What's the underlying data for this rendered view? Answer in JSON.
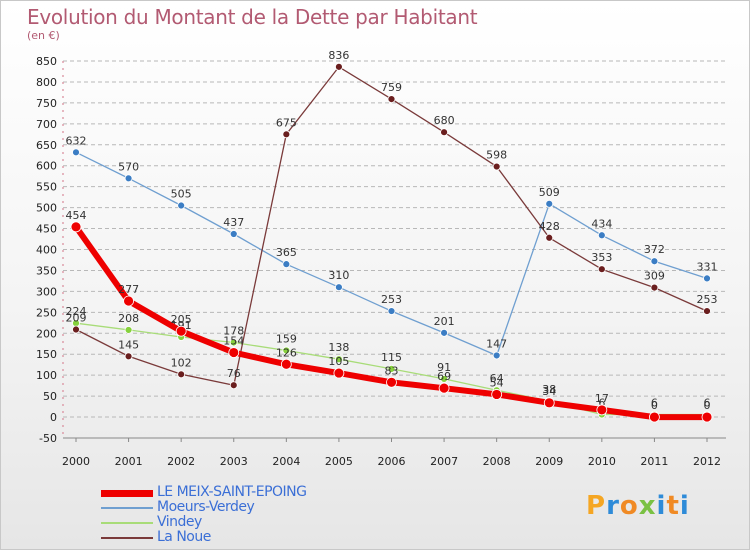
{
  "header": {
    "title": "Evolution du Montant de la Dette par Habitant",
    "subtitle": "(en €)"
  },
  "brand": {
    "logo_letters": [
      "P",
      "r",
      "o",
      "x",
      "i",
      "t",
      "i"
    ],
    "logo_colors": [
      "#f5a623",
      "#2e8bd8",
      "#f08a24",
      "#7ac143",
      "#2e8bd8",
      "#f08a24",
      "#2e8bd8"
    ]
  },
  "chart_data": {
    "type": "line",
    "x": [
      "2000",
      "2001",
      "2002",
      "2003",
      "2004",
      "2005",
      "2006",
      "2007",
      "2008",
      "2009",
      "2010",
      "2011",
      "2012"
    ],
    "ylim": [
      -50,
      850
    ],
    "yticks": [
      -50,
      0,
      50,
      100,
      150,
      200,
      250,
      300,
      350,
      400,
      450,
      500,
      550,
      600,
      650,
      700,
      750,
      800,
      850
    ],
    "grid": "horizontal, dashed",
    "legend_position": "bottom-left",
    "series": [
      {
        "name": "Moeurs-Verdey",
        "color": "#6f9fd0",
        "marker": "#3b7dc4",
        "width": 1.3,
        "marker_r": 3.5,
        "values": [
          632,
          570,
          505,
          437,
          365,
          310,
          253,
          201,
          147,
          509,
          434,
          372,
          331
        ],
        "labels": [
          "632",
          "570",
          "505",
          "437",
          "365",
          "310",
          "253",
          "201",
          "147",
          "509",
          "434",
          "372",
          "331"
        ]
      },
      {
        "name": "Vindey",
        "color": "#a8dc78",
        "marker": "#86d13c",
        "width": 1.3,
        "marker_r": 3.5,
        "values": [
          224,
          208,
          191,
          178,
          159,
          138,
          115,
          91,
          64,
          38,
          6,
          6,
          6
        ],
        "labels": [
          "224",
          "208",
          "191",
          "178",
          "159",
          "138",
          "115",
          "91",
          "64",
          "38",
          "6",
          "6",
          "6"
        ]
      },
      {
        "name": "La Noue",
        "color": "#7a3a3a",
        "marker": "#6a1e1e",
        "width": 1.3,
        "marker_r": 3.5,
        "segments": [
          [
            0,
            3
          ],
          [
            3,
            12
          ]
        ],
        "values": [
          209,
          145,
          102,
          76,
          675,
          836,
          759,
          680,
          598,
          428,
          353,
          309,
          253
        ],
        "labels": [
          "209",
          "145",
          "102",
          "76",
          "675",
          "836",
          "759",
          "680",
          "598",
          "428",
          "353",
          "309",
          "253"
        ]
      },
      {
        "name": "LE MEIX-SAINT-EPOING",
        "color": "#ee0000",
        "marker": "#ee0000",
        "width": 6,
        "marker_r": 5,
        "values": [
          454,
          277,
          205,
          154,
          126,
          105,
          83,
          69,
          54,
          34,
          17,
          0,
          0
        ],
        "labels": [
          "454",
          "277",
          "205",
          "154",
          "126",
          "105",
          "83",
          "69",
          "54",
          "34",
          "17",
          "0",
          "0"
        ]
      }
    ],
    "legend": [
      {
        "name": "LE MEIX-SAINT-EPOING",
        "color": "#ee0000"
      },
      {
        "name": "Moeurs-Verdey",
        "color": "#6f9fd0"
      },
      {
        "name": "Vindey",
        "color": "#a8dc78"
      },
      {
        "name": "La Noue",
        "color": "#7a3a3a"
      }
    ]
  }
}
